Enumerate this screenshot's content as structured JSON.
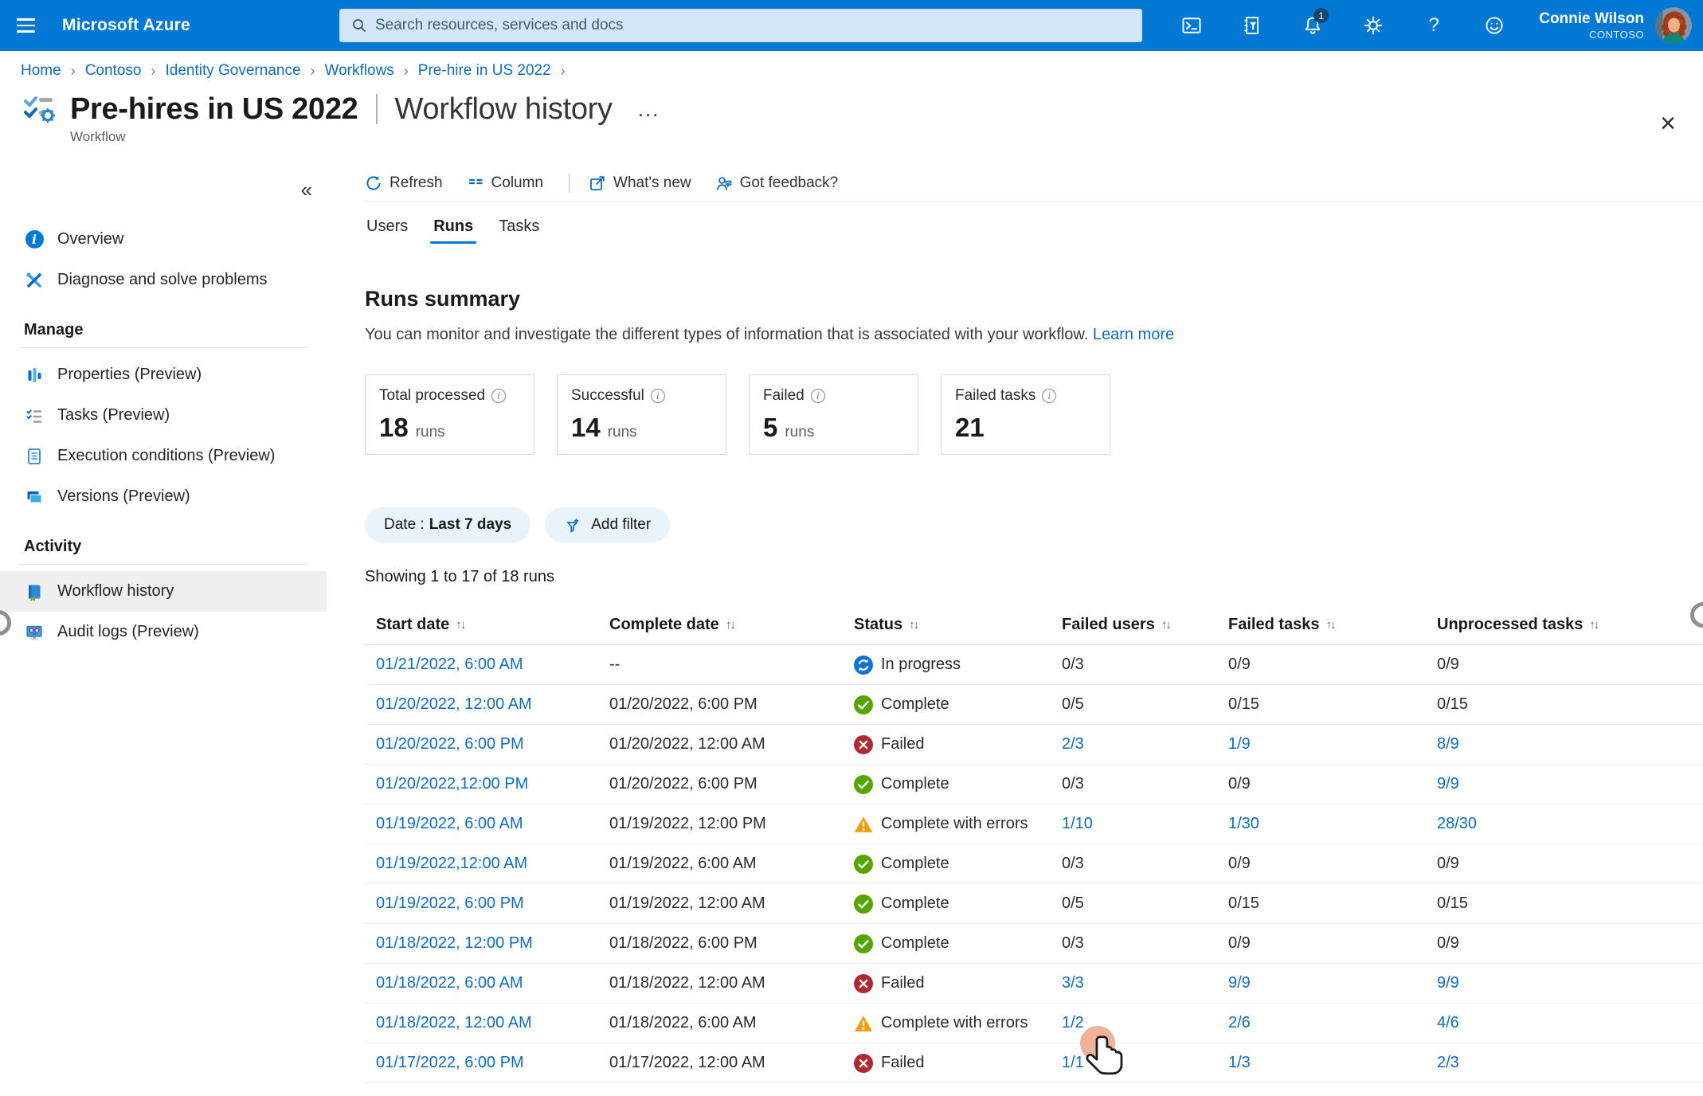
{
  "topbar": {
    "brand": "Microsoft Azure",
    "search_placeholder": "Search resources, services and docs",
    "notification_count": "1",
    "help_glyph": "?",
    "user": {
      "name": "Connie Wilson",
      "tenant": "CONTOSO"
    }
  },
  "breadcrumb": {
    "separator": "›",
    "items": [
      "Home",
      "Contoso",
      "Identity Governance",
      "Workflows",
      "Pre-hire in US 2022"
    ]
  },
  "header": {
    "title": "Pre-hires in US 2022",
    "section": "Workflow history",
    "subtitle": "Workflow",
    "more_glyph": "...",
    "close_glyph": "×"
  },
  "sidebar": {
    "collapse_glyph": "«",
    "overview": "Overview",
    "diagnose": "Diagnose and solve problems",
    "manage_header": "Manage",
    "properties": "Properties (Preview)",
    "tasks": "Tasks (Preview)",
    "execution": "Execution conditions (Preview)",
    "versions": "Versions (Preview)",
    "activity_header": "Activity",
    "workflow_history": "Workflow history",
    "audit_logs": "Audit logs (Preview)"
  },
  "toolbar": {
    "refresh": "Refresh",
    "column": "Column",
    "whats_new": "What's new",
    "feedback": "Got feedback?"
  },
  "tabs": {
    "users": "Users",
    "runs": "Runs",
    "tasks": "Tasks"
  },
  "summary": {
    "title": "Runs summary",
    "description": "You can monitor and investigate the different types of information that is associated with your workflow.",
    "learn_more": "Learn more",
    "info_glyph": "i",
    "cards": [
      {
        "label": "Total processed",
        "value": "18",
        "unit": "runs"
      },
      {
        "label": "Successful",
        "value": "14",
        "unit": "runs"
      },
      {
        "label": "Failed",
        "value": "5",
        "unit": "runs"
      },
      {
        "label": "Failed tasks",
        "value": "21",
        "unit": ""
      }
    ]
  },
  "filters": {
    "date_label": "Date :",
    "date_value": "Last 7 days",
    "add_filter": "Add filter"
  },
  "table": {
    "showing": "Showing 1 to 17 of 18 runs",
    "sort_glyph": "↑↓",
    "columns": [
      "Start date",
      "Complete date",
      "Status",
      "Failed users",
      "Failed tasks",
      "Unprocessed tasks"
    ],
    "rows": [
      {
        "start": "01/21/2022, 6:00 AM",
        "complete": "--",
        "status": "In progress",
        "status_type": "inprogress",
        "failed_users": "0/3",
        "failed_tasks": "0/9",
        "unprocessed": "0/9",
        "links": {
          "users": false,
          "tasks": false,
          "unprocessed": false
        }
      },
      {
        "start": "01/20/2022, 12:00 AM",
        "complete": "01/20/2022, 6:00 PM",
        "status": "Complete",
        "status_type": "complete",
        "failed_users": "0/5",
        "failed_tasks": "0/15",
        "unprocessed": "0/15",
        "links": {
          "users": false,
          "tasks": false,
          "unprocessed": false
        }
      },
      {
        "start": "01/20/2022, 6:00 PM",
        "complete": "01/20/2022, 12:00 AM",
        "status": "Failed",
        "status_type": "failed",
        "failed_users": "2/3",
        "failed_tasks": "1/9",
        "unprocessed": "8/9",
        "links": {
          "users": true,
          "tasks": true,
          "unprocessed": true
        }
      },
      {
        "start": "01/20/2022,12:00 PM",
        "complete": "01/20/2022, 6:00 PM",
        "status": "Complete",
        "status_type": "complete",
        "failed_users": "0/3",
        "failed_tasks": "0/9",
        "unprocessed": "9/9",
        "links": {
          "users": false,
          "tasks": false,
          "unprocessed": true
        }
      },
      {
        "start": "01/19/2022, 6:00 AM",
        "complete": "01/19/2022, 12:00 PM",
        "status": "Complete with errors",
        "status_type": "warning",
        "failed_users": "1/10",
        "failed_tasks": "1/30",
        "unprocessed": "28/30",
        "links": {
          "users": true,
          "tasks": true,
          "unprocessed": true
        }
      },
      {
        "start": "01/19/2022,12:00 AM",
        "complete": "01/19/2022, 6:00 AM",
        "status": "Complete",
        "status_type": "complete",
        "failed_users": "0/3",
        "failed_tasks": "0/9",
        "unprocessed": "0/9",
        "links": {
          "users": false,
          "tasks": false,
          "unprocessed": false
        }
      },
      {
        "start": "01/19/2022, 6:00 PM",
        "complete": "01/19/2022, 12:00 AM",
        "status": "Complete",
        "status_type": "complete",
        "failed_users": "0/5",
        "failed_tasks": "0/15",
        "unprocessed": "0/15",
        "links": {
          "users": false,
          "tasks": false,
          "unprocessed": false
        }
      },
      {
        "start": "01/18/2022, 12:00 PM",
        "complete": "01/18/2022, 6:00 PM",
        "status": "Complete",
        "status_type": "complete",
        "failed_users": "0/3",
        "failed_tasks": "0/9",
        "unprocessed": "0/9",
        "links": {
          "users": false,
          "tasks": false,
          "unprocessed": false
        }
      },
      {
        "start": "01/18/2022, 6:00 AM",
        "complete": "01/18/2022, 12:00 AM",
        "status": "Failed",
        "status_type": "failed",
        "failed_users": "3/3",
        "failed_tasks": "9/9",
        "unprocessed": "9/9",
        "links": {
          "users": true,
          "tasks": true,
          "unprocessed": true
        }
      },
      {
        "start": "01/18/2022, 12:00 AM",
        "complete": "01/18/2022, 6:00 AM",
        "status": "Complete with errors",
        "status_type": "warning",
        "failed_users": "1/2",
        "failed_tasks": "2/6",
        "unprocessed": "4/6",
        "links": {
          "users": true,
          "tasks": true,
          "unprocessed": true
        }
      },
      {
        "start": "01/17/2022, 6:00 PM",
        "complete": "01/17/2022, 12:00 AM",
        "status": "Failed",
        "status_type": "failed",
        "failed_users": "1/1",
        "failed_tasks": "1/3",
        "unprocessed": "2/3",
        "links": {
          "users": true,
          "tasks": true,
          "unprocessed": true
        }
      }
    ]
  },
  "colors": {
    "brand_blue": "#0078d4",
    "link_blue": "#0f6cbd",
    "success_green": "#57a300",
    "error_red": "#b02a30",
    "warning_orange": "#f29d0e"
  }
}
